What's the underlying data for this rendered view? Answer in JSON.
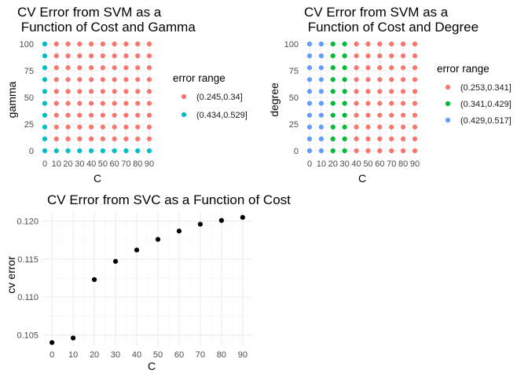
{
  "chart_data": [
    {
      "type": "scatter",
      "title_lines": [
        "CV Error from SVM as a",
        " Function of Cost and Gamma"
      ],
      "xlabel": "C",
      "ylabel": "gamma",
      "x_ticks": [
        0,
        10,
        20,
        30,
        40,
        50,
        60,
        70,
        80,
        90
      ],
      "y_ticks": [
        0,
        25,
        50,
        75,
        100
      ],
      "xlim": [
        0,
        90
      ],
      "ylim": [
        0,
        100
      ],
      "grid_x": [
        0,
        10,
        20,
        30,
        40,
        50,
        60,
        70,
        80,
        90
      ],
      "grid_y": [
        0,
        11.1,
        22.2,
        33.3,
        44.4,
        55.6,
        66.7,
        77.8,
        88.9,
        100
      ],
      "legend": {
        "title": "error range",
        "position": "right",
        "entries": [
          {
            "label": "(0.245,0.34]",
            "color": "#F8766D"
          },
          {
            "label": "(0.434,0.529]",
            "color": "#00BFC4"
          }
        ]
      },
      "series": [
        {
          "name": "(0.245,0.34]",
          "color": "#F8766D",
          "rule": "C >= 10 and gamma >= 11.1"
        },
        {
          "name": "(0.434,0.529]",
          "color": "#00BFC4",
          "rule": "C == 0 or gamma == 0"
        }
      ]
    },
    {
      "type": "scatter",
      "title_lines": [
        "CV Error from SVM as a",
        " Function of Cost and Degree"
      ],
      "xlabel": "C",
      "ylabel": "degree",
      "x_ticks": [
        0,
        10,
        20,
        30,
        40,
        50,
        60,
        70,
        80,
        90
      ],
      "y_ticks": [
        0,
        25,
        50,
        75,
        100
      ],
      "xlim": [
        0,
        90
      ],
      "ylim": [
        0,
        100
      ],
      "grid_x": [
        0,
        10,
        20,
        30,
        40,
        50,
        60,
        70,
        80,
        90
      ],
      "grid_y": [
        0,
        11.1,
        22.2,
        33.3,
        44.4,
        55.6,
        66.7,
        77.8,
        88.9,
        100
      ],
      "legend": {
        "title": "error range",
        "position": "right",
        "entries": [
          {
            "label": "(0.253,0.341]",
            "color": "#F8766D"
          },
          {
            "label": "(0.341,0.429]",
            "color": "#00BA38"
          },
          {
            "label": "(0.429,0.517]",
            "color": "#619CFF"
          }
        ]
      },
      "series": [
        {
          "name": "(0.253,0.341]",
          "color": "#F8766D",
          "x": [
            40,
            50,
            60,
            70,
            80,
            90
          ]
        },
        {
          "name": "(0.341,0.429]",
          "color": "#00BA38",
          "x": [
            20,
            30
          ]
        },
        {
          "name": "(0.429,0.517]",
          "color": "#619CFF",
          "x": [
            0,
            10
          ]
        }
      ]
    },
    {
      "type": "scatter",
      "title": "CV Error from SVC as a Function of Cost",
      "xlabel": "C",
      "ylabel": "cv error",
      "x_ticks": [
        0,
        10,
        20,
        30,
        40,
        50,
        60,
        70,
        80,
        90
      ],
      "y_ticks": [
        "0.105",
        "0.110",
        "0.115",
        "0.120"
      ],
      "xlim": [
        -4.5,
        94.5
      ],
      "ylim": [
        0.1036,
        0.1212
      ],
      "color": "#000000",
      "x": [
        0,
        10,
        20,
        30,
        40,
        50,
        60,
        70,
        80,
        90
      ],
      "y": [
        0.104,
        0.1046,
        0.1123,
        0.1147,
        0.1162,
        0.1176,
        0.1187,
        0.1196,
        0.1201,
        0.1205
      ]
    }
  ]
}
